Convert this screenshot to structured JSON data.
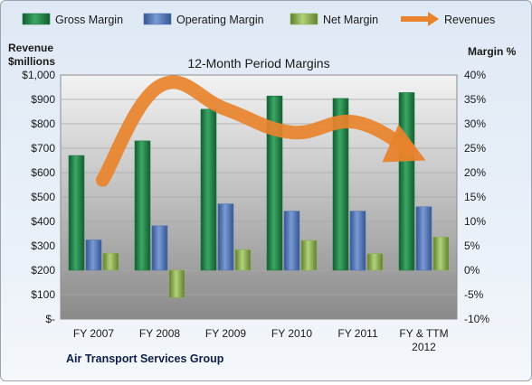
{
  "chart_data": {
    "type": "bar",
    "title": "12-Month Period Margins",
    "subtitle": "Air Transport  Services Group",
    "categories": [
      "FY 2007",
      "FY 2008",
      "FY 2009",
      "FY 2010",
      "FY 2011",
      "FY & TTM 2012"
    ],
    "series": [
      {
        "name": "Gross Margin",
        "axis": "right",
        "color": "#1f7a43",
        "values": [
          23.5,
          26.5,
          33.0,
          35.7,
          35.2,
          36.4
        ]
      },
      {
        "name": "Operating Margin",
        "axis": "right",
        "color": "#4f74b8",
        "values": [
          6.2,
          9.1,
          13.6,
          12.1,
          12.1,
          13.0
        ]
      },
      {
        "name": "Net Margin",
        "axis": "right",
        "color": "#8db152",
        "values": [
          3.5,
          -5.6,
          4.2,
          6.1,
          3.4,
          6.8
        ]
      },
      {
        "name": "Revenues",
        "axis": "left",
        "color": "#e8832c",
        "type": "line",
        "values": [
          570,
          955,
          860,
          765,
          805,
          650
        ]
      }
    ],
    "ylabel_left": "Revenue\n$millions",
    "ylabel_right": "Margin %",
    "ylim_left": [
      0,
      1000
    ],
    "ylim_right": [
      -10,
      40
    ],
    "yticks_left": [
      "$-",
      "$100",
      "$200",
      "$300",
      "$400",
      "$500",
      "$600",
      "$700",
      "$800",
      "$900",
      "$1,000"
    ],
    "yticks_right": [
      "-10%",
      "-5%",
      "0%",
      "5%",
      "10%",
      "15%",
      "20%",
      "25%",
      "30%",
      "35%",
      "40%"
    ],
    "legend": [
      "Gross Margin",
      "Operating Margin",
      "Net Margin",
      "Revenues"
    ],
    "legend_position": "top",
    "grid": true
  }
}
